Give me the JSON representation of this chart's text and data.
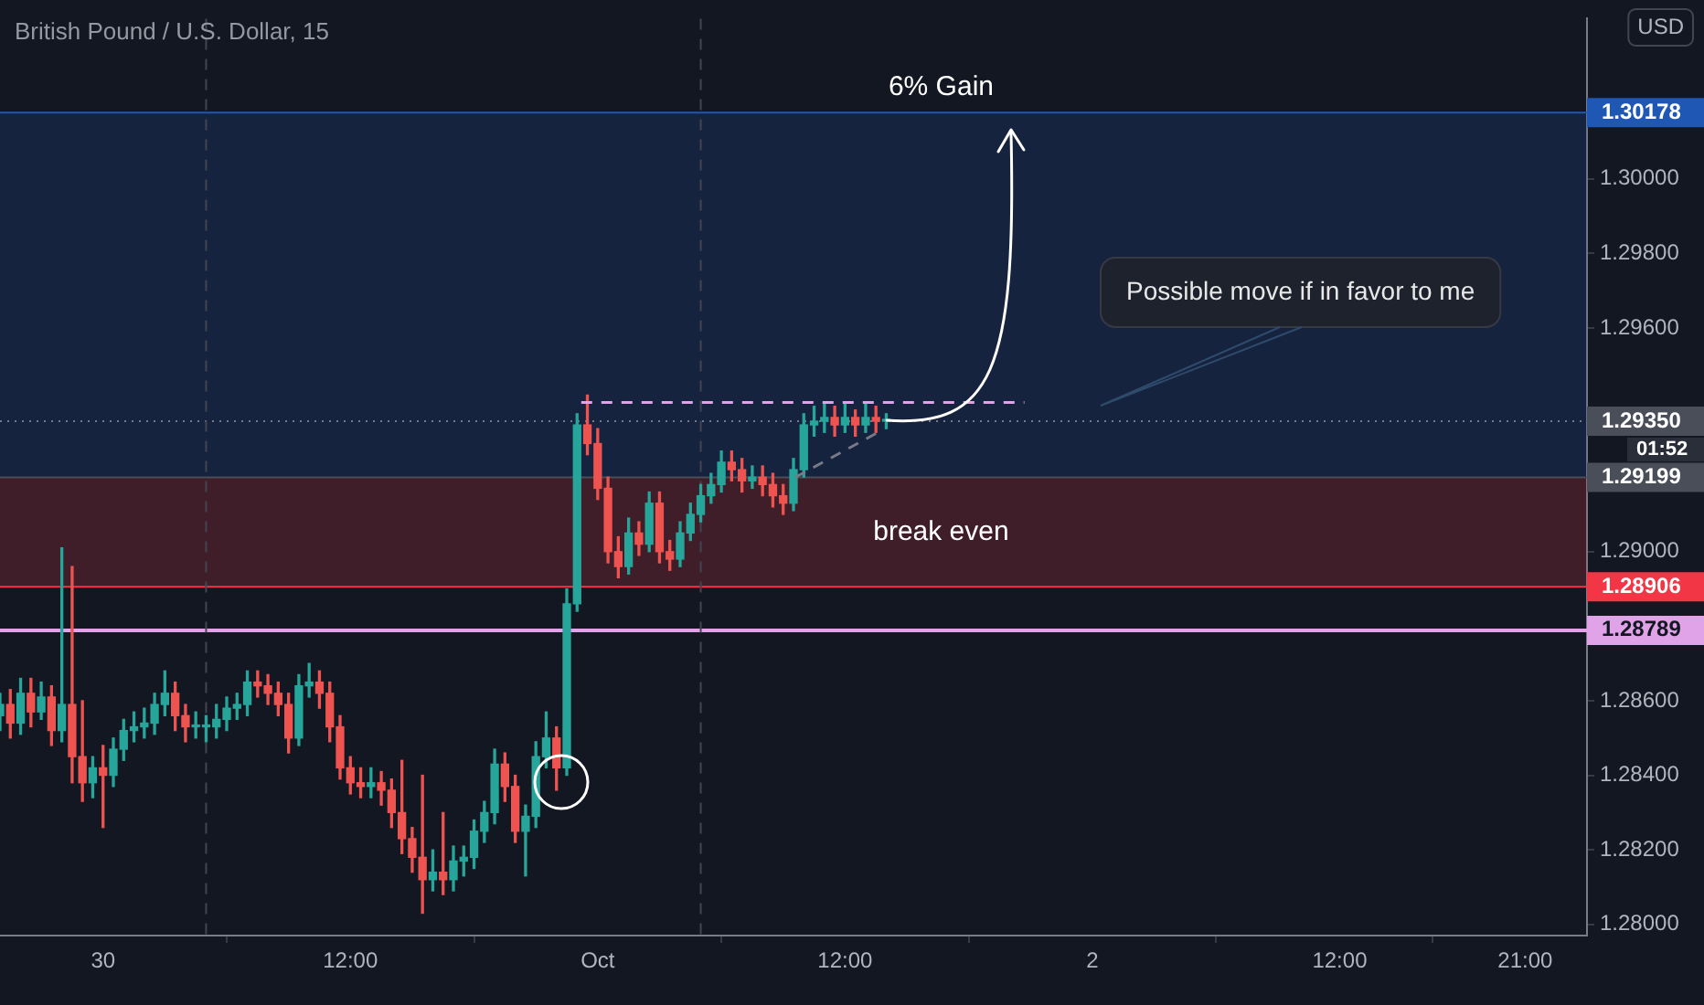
{
  "chart_data": {
    "type": "candlestick",
    "title": "British Pound / U.S. Dollar, 15",
    "x": [
      "--09-29T19:00",
      "--09-29T19:30",
      "--09-29T20:00",
      "--09-29T20:30",
      "--09-29T21:00",
      "--09-29T21:30",
      "--09-29T22:00",
      "--09-29T22:30",
      "--09-29T23:00",
      "--09-29T23:30",
      "--09-30T00:00",
      "--09-30T00:30",
      "--09-30T01:00",
      "--09-30T01:30",
      "--09-30T02:00",
      "--09-30T02:30",
      "--09-30T03:00",
      "--09-30T03:30",
      "--09-30T04:00",
      "--09-30T04:30",
      "--09-30T05:00",
      "--09-30T05:30",
      "--09-30T06:00",
      "--09-30T06:30",
      "--09-30T07:00",
      "--09-30T07:30",
      "--09-30T08:00",
      "--09-30T08:30",
      "--09-30T09:00",
      "--09-30T09:30",
      "--09-30T10:00",
      "--09-30T10:30",
      "--09-30T11:00",
      "--09-30T11:30",
      "--09-30T12:00",
      "--09-30T12:30",
      "--09-30T13:00",
      "--09-30T13:30",
      "--09-30T14:00",
      "--09-30T14:30",
      "--09-30T15:00",
      "--09-30T15:30",
      "--09-30T16:00",
      "--09-30T16:30",
      "--09-30T17:00",
      "--09-30T17:30",
      "--09-30T18:00",
      "--09-30T18:30",
      "--09-30T19:00",
      "--09-30T19:30",
      "--09-30T20:00",
      "--09-30T20:30",
      "--09-30T21:00",
      "--09-30T21:30",
      "--09-30T22:00",
      "--09-30T22:30",
      "--09-30T23:00",
      "--09-30T23:30",
      "--10-01T00:00",
      "--10-01T00:30",
      "--10-01T01:00",
      "--10-01T01:30",
      "--10-01T02:00",
      "--10-01T02:30",
      "--10-01T03:00",
      "--10-01T03:30",
      "--10-01T04:00",
      "--10-01T04:30",
      "--10-01T05:00",
      "--10-01T05:30",
      "--10-01T06:00",
      "--10-01T06:30",
      "--10-01T07:00",
      "--10-01T07:30",
      "--10-01T08:00",
      "--10-01T08:30",
      "--10-01T09:00",
      "--10-01T09:30",
      "--10-01T10:00",
      "--10-01T10:30",
      "--10-01T11:00",
      "--10-01T11:30",
      "--10-01T12:00",
      "--10-01T12:30",
      "--10-01T13:00",
      "--10-01T13:30",
      "--10-01T14:00"
    ],
    "ohlc": [
      [
        1.2856,
        1.2862,
        1.2852,
        1.2859
      ],
      [
        1.2859,
        1.2863,
        1.285,
        1.2854
      ],
      [
        1.2854,
        1.2866,
        1.2851,
        1.2862
      ],
      [
        1.2862,
        1.2866,
        1.2853,
        1.2857
      ],
      [
        1.2857,
        1.2865,
        1.2855,
        1.2861
      ],
      [
        1.2861,
        1.2864,
        1.2848,
        1.2852
      ],
      [
        1.2852,
        1.2901,
        1.2849,
        1.2859
      ],
      [
        1.2859,
        1.2896,
        1.2838,
        1.2845
      ],
      [
        1.2845,
        1.286,
        1.2833,
        1.2838
      ],
      [
        1.2838,
        1.2845,
        1.2834,
        1.2842
      ],
      [
        1.2842,
        1.2848,
        1.2826,
        1.284
      ],
      [
        1.284,
        1.285,
        1.2837,
        1.2847
      ],
      [
        1.2847,
        1.2855,
        1.2844,
        1.2852
      ],
      [
        1.2852,
        1.2857,
        1.2849,
        1.2853
      ],
      [
        1.2853,
        1.2858,
        1.285,
        1.2854
      ],
      [
        1.2854,
        1.2862,
        1.2851,
        1.2859
      ],
      [
        1.2859,
        1.2868,
        1.2856,
        1.2862
      ],
      [
        1.2862,
        1.2865,
        1.2852,
        1.2856
      ],
      [
        1.2856,
        1.2859,
        1.2849,
        1.2853
      ],
      [
        1.2853,
        1.2857,
        1.285,
        1.2853
      ],
      [
        1.2853,
        1.2856,
        1.2849,
        1.2853
      ],
      [
        1.2853,
        1.2859,
        1.285,
        1.2855
      ],
      [
        1.2855,
        1.2861,
        1.2852,
        1.2858
      ],
      [
        1.2858,
        1.2862,
        1.2855,
        1.2859
      ],
      [
        1.2859,
        1.2868,
        1.2856,
        1.2865
      ],
      [
        1.2865,
        1.2868,
        1.2861,
        1.2864
      ],
      [
        1.2864,
        1.2867,
        1.2859,
        1.2862
      ],
      [
        1.2862,
        1.2865,
        1.2856,
        1.2859
      ],
      [
        1.2859,
        1.2862,
        1.2846,
        1.285
      ],
      [
        1.285,
        1.2867,
        1.2848,
        1.2864
      ],
      [
        1.2864,
        1.287,
        1.2861,
        1.2865
      ],
      [
        1.2865,
        1.2868,
        1.2858,
        1.2862
      ],
      [
        1.2862,
        1.2865,
        1.2849,
        1.2853
      ],
      [
        1.2853,
        1.2856,
        1.2839,
        1.2842
      ],
      [
        1.2842,
        1.2845,
        1.2835,
        1.2838
      ],
      [
        1.2838,
        1.2842,
        1.2834,
        1.2837
      ],
      [
        1.2837,
        1.2842,
        1.2834,
        1.2838
      ],
      [
        1.2838,
        1.2841,
        1.2832,
        1.2836
      ],
      [
        1.2836,
        1.2839,
        1.2826,
        1.283
      ],
      [
        1.283,
        1.2844,
        1.2819,
        1.2823
      ],
      [
        1.2823,
        1.2826,
        1.2814,
        1.2818
      ],
      [
        1.2818,
        1.284,
        1.2803,
        1.2812
      ],
      [
        1.2812,
        1.282,
        1.2809,
        1.2814
      ],
      [
        1.2814,
        1.283,
        1.2808,
        1.2812
      ],
      [
        1.2812,
        1.2821,
        1.2809,
        1.2817
      ],
      [
        1.2817,
        1.2821,
        1.2813,
        1.2818
      ],
      [
        1.2818,
        1.2828,
        1.2815,
        1.2825
      ],
      [
        1.2825,
        1.2833,
        1.2822,
        1.283
      ],
      [
        1.283,
        1.2847,
        1.2827,
        1.2843
      ],
      [
        1.2843,
        1.2846,
        1.2833,
        1.2837
      ],
      [
        1.2837,
        1.284,
        1.2822,
        1.2825
      ],
      [
        1.2825,
        1.2832,
        1.2813,
        1.2829
      ],
      [
        1.2829,
        1.2849,
        1.2826,
        1.2845
      ],
      [
        1.2845,
        1.2857,
        1.2842,
        1.285
      ],
      [
        1.285,
        1.2853,
        1.2836,
        1.2842
      ],
      [
        1.2842,
        1.289,
        1.284,
        1.2886
      ],
      [
        1.2886,
        1.2937,
        1.2884,
        1.2934
      ],
      [
        1.2934,
        1.2942,
        1.2926,
        1.2929
      ],
      [
        1.2929,
        1.2933,
        1.2914,
        1.2917
      ],
      [
        1.2917,
        1.292,
        1.2897,
        1.29
      ],
      [
        1.29,
        1.2904,
        1.2893,
        1.2896
      ],
      [
        1.2896,
        1.2909,
        1.2894,
        1.2905
      ],
      [
        1.2905,
        1.2908,
        1.2899,
        1.2902
      ],
      [
        1.2902,
        1.2916,
        1.29,
        1.2913
      ],
      [
        1.2913,
        1.2916,
        1.2897,
        1.29
      ],
      [
        1.29,
        1.2903,
        1.2895,
        1.2898
      ],
      [
        1.2898,
        1.2908,
        1.2896,
        1.2905
      ],
      [
        1.2905,
        1.2913,
        1.2903,
        1.291
      ],
      [
        1.291,
        1.2918,
        1.2908,
        1.2915
      ],
      [
        1.2915,
        1.2921,
        1.2913,
        1.2918
      ],
      [
        1.2918,
        1.2927,
        1.2916,
        1.2924
      ],
      [
        1.2924,
        1.2927,
        1.2919,
        1.2922
      ],
      [
        1.2922,
        1.2925,
        1.2916,
        1.2919
      ],
      [
        1.2919,
        1.2923,
        1.2917,
        1.292
      ],
      [
        1.292,
        1.2923,
        1.2915,
        1.2918
      ],
      [
        1.2918,
        1.2921,
        1.2912,
        1.2915
      ],
      [
        1.2915,
        1.2918,
        1.291,
        1.2913
      ],
      [
        1.2913,
        1.2925,
        1.2911,
        1.2922
      ],
      [
        1.2922,
        1.2937,
        1.292,
        1.2934
      ],
      [
        1.2934,
        1.2939,
        1.2931,
        1.2935
      ],
      [
        1.2935,
        1.294,
        1.2932,
        1.2936
      ],
      [
        1.2936,
        1.2939,
        1.2931,
        1.2934
      ],
      [
        1.2934,
        1.294,
        1.2932,
        1.2936
      ],
      [
        1.2936,
        1.2938,
        1.2931,
        1.2934
      ],
      [
        1.2934,
        1.294,
        1.2932,
        1.2936
      ],
      [
        1.2936,
        1.2939,
        1.2932,
        1.2935
      ],
      [
        1.2935,
        1.2937,
        1.2933,
        1.2935
      ]
    ],
    "colors": [
      "#26a69a",
      "#ef5350",
      "#26a69a",
      "#ef5350",
      "#26a69a",
      "#ef5350",
      "#26a69a",
      "#ef5350",
      "#ef5350",
      "#26a69a",
      "#ef5350",
      "#26a69a",
      "#26a69a",
      "#26a69a",
      "#26a69a",
      "#26a69a",
      "#26a69a",
      "#ef5350",
      "#ef5350",
      "#26a69a",
      "#26a69a",
      "#26a69a",
      "#26a69a",
      "#26a69a",
      "#26a69a",
      "#ef5350",
      "#ef5350",
      "#ef5350",
      "#ef5350",
      "#26a69a",
      "#26a69a",
      "#ef5350",
      "#ef5350",
      "#ef5350",
      "#ef5350",
      "#ef5350",
      "#26a69a",
      "#ef5350",
      "#ef5350",
      "#ef5350",
      "#ef5350",
      "#ef5350",
      "#26a69a",
      "#ef5350",
      "#26a69a",
      "#26a69a",
      "#26a69a",
      "#26a69a",
      "#26a69a",
      "#ef5350",
      "#ef5350",
      "#26a69a",
      "#26a69a",
      "#26a69a",
      "#ef5350",
      "#26a69a",
      "#26a69a",
      "#ef5350",
      "#ef5350",
      "#ef5350",
      "#ef5350",
      "#26a69a",
      "#ef5350",
      "#26a69a",
      "#ef5350",
      "#ef5350",
      "#26a69a",
      "#26a69a",
      "#26a69a",
      "#26a69a",
      "#26a69a",
      "#ef5350",
      "#ef5350",
      "#26a69a",
      "#ef5350",
      "#ef5350",
      "#ef5350",
      "#26a69a",
      "#26a69a",
      "#26a69a",
      "#26a69a",
      "#ef5350",
      "#26a69a",
      "#ef5350",
      "#26a69a",
      "#ef5350",
      "#26a69a"
    ],
    "series": [
      {
        "type": "line",
        "x": [
          "--09-30T23:12",
          "--10-01T20:42"
        ],
        "values": [
          1.294,
          1.294
        ],
        "color": "#e1a3e8",
        "line_style": "dashed"
      },
      {
        "type": "line",
        "x": [
          "--10-01T09:36",
          "--10-01T13:36"
        ],
        "values": [
          1.292,
          1.2932
        ],
        "color": "#787b86",
        "line_style": "dashed"
      }
    ],
    "xlim": [
      "--09-29T19:00",
      "--10-03T00:00"
    ],
    "xticks": [
      {
        "value": "--09-30",
        "label": "30"
      },
      {
        "value": "--09-30T12:00",
        "label": "12:00"
      },
      {
        "value": "--10-01",
        "label": "Oct"
      },
      {
        "value": "--10-01T12:00",
        "label": "12:00"
      },
      {
        "value": "--10-02",
        "label": "2"
      },
      {
        "value": "--10-02T12:00",
        "label": "12:00"
      },
      {
        "value": "--10-02T21:00",
        "label": "21:00"
      }
    ],
    "ylim": [
      1.2797,
      1.3043
    ],
    "yticks": [
      {
        "value": 1.28,
        "label": "1.28000"
      },
      {
        "value": 1.282,
        "label": "1.28200"
      },
      {
        "value": 1.284,
        "label": "1.28400"
      },
      {
        "value": 1.286,
        "label": "1.28600"
      },
      {
        "value": 1.29,
        "label": "1.29000"
      },
      {
        "value": 1.296,
        "label": "1.29600"
      },
      {
        "value": 1.298,
        "label": "1.29800"
      },
      {
        "value": 1.3,
        "label": "1.30000"
      }
    ],
    "ref_lines": [
      {
        "axis": "y",
        "value": 1.28789,
        "label": "1.28789",
        "color": "#e1a3e8",
        "line_style": "solid"
      },
      {
        "axis": "y",
        "value": 1.2935,
        "label": "1.29350",
        "color": "#787b86",
        "line_style": "dotted"
      },
      {
        "axis": "y",
        "value": 1.30178,
        "label": "1.30178",
        "color": "#1f57b5",
        "line_style": "solid"
      },
      {
        "axis": "y",
        "value": 1.29199,
        "label": "1.29199",
        "color": "#4a4e59",
        "line_style": "solid"
      },
      {
        "axis": "y",
        "value": 1.28906,
        "label": "1.28906",
        "color": "#f23645",
        "line_style": "solid"
      },
      {
        "axis": "x",
        "value": "--09-30T05:00",
        "color": "#434651",
        "line_style": "dashed"
      },
      {
        "axis": "x",
        "value": "--10-01T05:00",
        "color": "#434651",
        "line_style": "dashed"
      }
    ],
    "bands": [
      {
        "axis": "y",
        "from": 1.29199,
        "to": 1.30178,
        "label": "6% Gain",
        "color": "#1f57b5"
      },
      {
        "axis": "y",
        "from": 1.28906,
        "to": 1.29199,
        "label": "break even",
        "color": "#f23645"
      }
    ],
    "annotations": [
      "Possible move if in favor to me",
      "01:52",
      "USD"
    ],
    "grid": false,
    "legend": false,
    "marker": "none"
  }
}
